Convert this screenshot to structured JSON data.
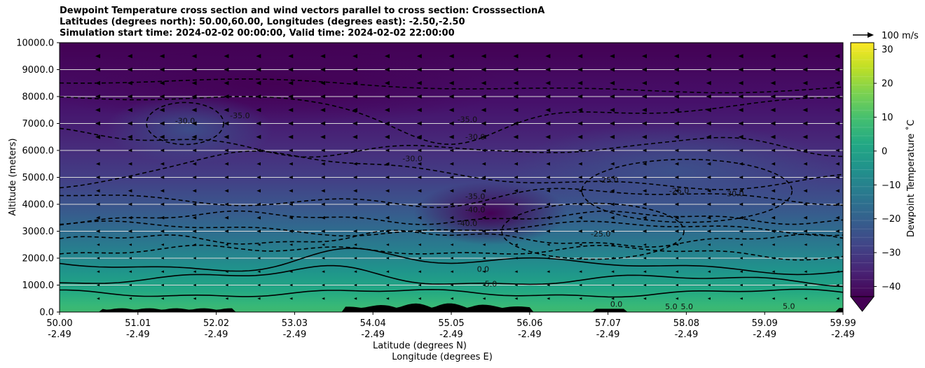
{
  "titles": {
    "line1": "Dewpoint Temperature cross section and wind vectors parallel to cross section: CrosssectionA",
    "line2": "Latitudes (degrees north): 50.00,60.00, Longitudes (degrees east): -2.50,-2.50",
    "line3": "Simulation start time: 2024-02-02 00:00:00, Valid time: 2024-02-02 22:00:00"
  },
  "chart_data": {
    "type": "heatmap",
    "xlabel": "Latitude (degrees N)",
    "xlabel2": "Longitude (degrees E)",
    "ylabel": "Altitude (meters)",
    "x_ticks": [
      {
        "lat": "50.00",
        "lon": "-2.49"
      },
      {
        "lat": "51.01",
        "lon": "-2.49"
      },
      {
        "lat": "52.02",
        "lon": "-2.49"
      },
      {
        "lat": "53.03",
        "lon": "-2.49"
      },
      {
        "lat": "54.04",
        "lon": "-2.49"
      },
      {
        "lat": "55.05",
        "lon": "-2.49"
      },
      {
        "lat": "56.06",
        "lon": "-2.49"
      },
      {
        "lat": "57.07",
        "lon": "-2.49"
      },
      {
        "lat": "58.08",
        "lon": "-2.49"
      },
      {
        "lat": "59.09",
        "lon": "-2.49"
      },
      {
        "lat": "59.99",
        "lon": "-2.49"
      }
    ],
    "xlim": [
      50.0,
      59.99
    ],
    "y_ticks": [
      "0.0",
      "1000.0",
      "2000.0",
      "3000.0",
      "4000.0",
      "5000.0",
      "6000.0",
      "7000.0",
      "8000.0",
      "9000.0",
      "10000.0"
    ],
    "ylim": [
      0,
      10000
    ],
    "grid": "horizontal",
    "colorbar": {
      "label": "Dewpoint Temperature $^\\circ$C",
      "label_display": "Dewpoint Temperature ˚C",
      "ticks": [
        "30",
        "20",
        "10",
        "0",
        "−10",
        "−20",
        "−30",
        "−40"
      ],
      "tick_values": [
        30,
        20,
        10,
        0,
        -10,
        -20,
        -30,
        -40
      ],
      "range": [
        -43,
        32
      ],
      "extend": "min",
      "colormap": "viridis"
    },
    "quiver_key": {
      "label": "100 m/s",
      "speed": 100
    },
    "wind_direction": "southward (toward lower latitude) at most levels",
    "contour_levels_labeled": [
      {
        "label": "-30.0",
        "lat": 51.6,
        "alt": 7000
      },
      {
        "label": "-35.0",
        "lat": 52.3,
        "alt": 7200
      },
      {
        "label": "-35.0",
        "lat": 55.2,
        "alt": 7050
      },
      {
        "label": "-30.0",
        "lat": 55.3,
        "alt": 6400
      },
      {
        "label": "-30.0",
        "lat": 54.5,
        "alt": 5600
      },
      {
        "label": "-35.0",
        "lat": 55.3,
        "alt": 4200
      },
      {
        "label": "-40.0",
        "lat": 55.3,
        "alt": 3700
      },
      {
        "label": "-40.0",
        "lat": 55.2,
        "alt": 3200
      },
      {
        "label": "-25.0",
        "lat": 57.0,
        "alt": 4800
      },
      {
        "label": "-25.0",
        "lat": 57.9,
        "alt": 4400
      },
      {
        "label": "-30.0",
        "lat": 58.6,
        "alt": 4300
      },
      {
        "label": "-25.0",
        "lat": 56.9,
        "alt": 2800
      },
      {
        "label": "5.0",
        "lat": 55.5,
        "alt": 950
      },
      {
        "label": "0.0",
        "lat": 55.4,
        "alt": 1500
      },
      {
        "label": "0.0",
        "lat": 57.1,
        "alt": 200
      },
      {
        "label": "5.0",
        "lat": 57.8,
        "alt": 100
      },
      {
        "label": "5.0",
        "lat": 58.0,
        "alt": 100
      },
      {
        "label": "5.0",
        "lat": 59.3,
        "alt": 120
      }
    ],
    "terrain": "black orography along the bottom, highest near 54.0–56.0 N"
  }
}
